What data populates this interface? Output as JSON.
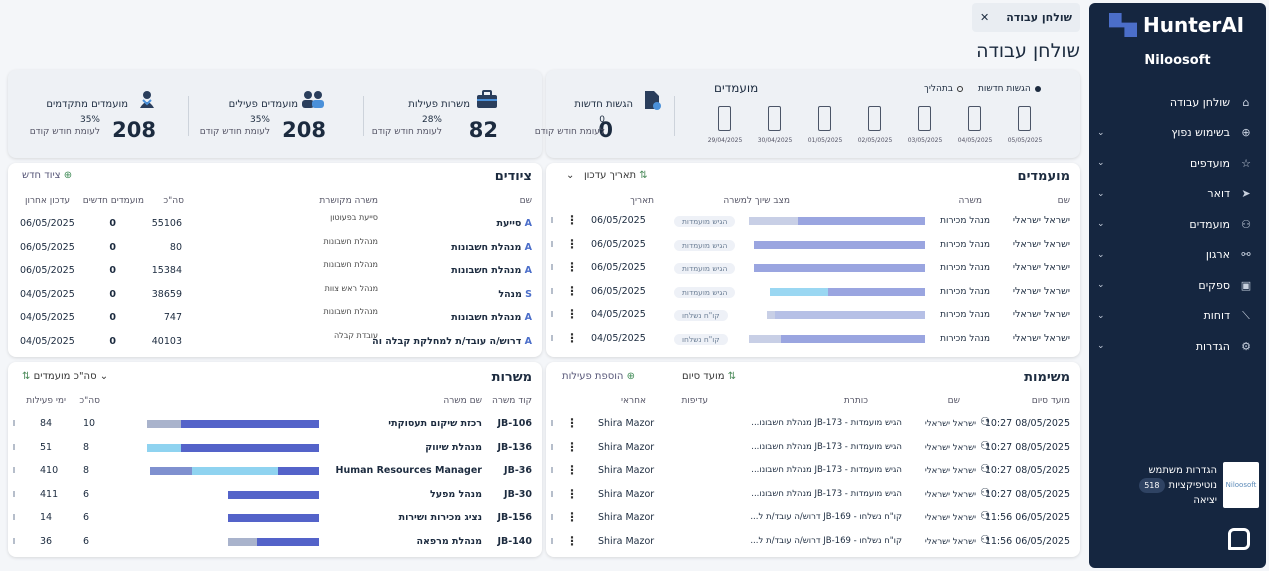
{
  "app": {
    "logo": "HunterAI",
    "org": "Niloosoft"
  },
  "tab": {
    "label": "שולחן עבודה",
    "close": "✕"
  },
  "page": {
    "title": "שולחן עבודה"
  },
  "sidebar": {
    "items": [
      {
        "label": "שולחן עבודה",
        "icon": "home-icon",
        "glyph": "⌂",
        "chev": ""
      },
      {
        "label": "בשימוש נפוץ",
        "icon": "crosshair-icon",
        "glyph": "⊕",
        "chev": "⌄"
      },
      {
        "label": "מועדפים",
        "icon": "star-icon",
        "glyph": "☆",
        "chev": "⌄"
      },
      {
        "label": "דואר",
        "icon": "send-icon",
        "glyph": "➤",
        "chev": "⌄"
      },
      {
        "label": "מועמדים",
        "icon": "user-icon",
        "glyph": "⚇",
        "chev": "⌄"
      },
      {
        "label": "ארגון",
        "icon": "org-icon",
        "glyph": "⚯",
        "chev": "⌄"
      },
      {
        "label": "ספקים",
        "icon": "save-icon",
        "glyph": "▣",
        "chev": "⌄"
      },
      {
        "label": "דוחות",
        "icon": "chart-icon",
        "glyph": "⟋",
        "chev": "⌄"
      },
      {
        "label": "הגדרות",
        "icon": "gear-icon",
        "glyph": "⚙",
        "chev": "⌄"
      }
    ],
    "user": {
      "settings": "הגדרות משתמש",
      "notifications": "נוטיפיקציות",
      "badge": "518",
      "logout": "יציאה",
      "avatar_text": "Niloosoft"
    }
  },
  "kpis": [
    {
      "title": "משרות פעילות",
      "value": "82",
      "pct": "28%",
      "sub": "לעומת חודש קודם",
      "icon": "briefcase-icon"
    },
    {
      "title": "מועמדים פעילים",
      "value": "208",
      "pct": "35%",
      "sub": "לעומת חודש קודם",
      "icon": "users-icon"
    },
    {
      "title": "מועמדים מתקדמים",
      "value": "208",
      "pct": "35%",
      "sub": "לעומת חודש קודם",
      "icon": "advanced-user-icon"
    }
  ],
  "submissions": {
    "title": "הגשות חדשות",
    "value": "0",
    "pct": "0",
    "sub": "לעומת חודש קודם",
    "section": "מועמדים",
    "legend_new": "הגשות חדשות",
    "legend_progress": "בתהליך",
    "dates": [
      "05/05/2025",
      "04/05/2025",
      "03/05/2025",
      "02/05/2025",
      "01/05/2025",
      "30/04/2025",
      "29/04/2025"
    ]
  },
  "candidates": {
    "title": "מועמדים",
    "sort": "תאריך עדכון",
    "headers": {
      "name": "שם",
      "job": "משרה",
      "status": "מצב שיוך למשרה",
      "date": "תאריך"
    },
    "rows": [
      {
        "name": "ישראל ישראלי",
        "job": "מנהל מכירות",
        "status": "הגיש מועמדות",
        "date": "06/05/2025",
        "light": 0.28,
        "dark": 0.72
      },
      {
        "name": "ישראל ישראלי",
        "job": "מנהל מכירות",
        "status": "הגיש מועמדות",
        "date": "06/05/2025",
        "light": 0,
        "dark": 0.97
      },
      {
        "name": "ישראל ישראלי",
        "job": "מנהל מכירות",
        "status": "הגיש מועמדות",
        "date": "06/05/2025",
        "light": 0,
        "dark": 0.97
      },
      {
        "name": "ישראל ישראלי",
        "job": "מנהל מכירות",
        "status": "הגיש מועמדות",
        "date": "06/05/2025",
        "light": 0.33,
        "dark": 0.55
      },
      {
        "name": "ישראל ישראלי",
        "job": "מנהל מכירות",
        "status": "קו\"ח נשלחו",
        "date": "04/05/2025",
        "light": 0.05,
        "dark": 0.85
      },
      {
        "name": "ישראל ישראלי",
        "job": "מנהל מכירות",
        "status": "קו\"ח נשלחו",
        "date": "04/05/2025",
        "light": 0.18,
        "dark": 0.82
      }
    ]
  },
  "equipment": {
    "title": "ציודים",
    "add": "ציוד חדש",
    "headers": {
      "name": "שם",
      "source_job": "משרה מקושרת",
      "total": "סה\"כ",
      "new_candidates": "מועמדים חדשים",
      "last_update": "עדכון אחרון"
    },
    "rows": [
      {
        "letter": "A",
        "name": "סייעת",
        "source": "סייעת בפעוטון",
        "total": "55106",
        "new": "0",
        "date": "06/05/2025"
      },
      {
        "letter": "A",
        "name": "מנהלת חשבונות",
        "source": "מנהלת חשבונות",
        "total": "80",
        "new": "0",
        "date": "06/05/2025"
      },
      {
        "letter": "A",
        "name": "מנהלת חשבונות",
        "source": "מנהלת חשבונות",
        "total": "15384",
        "new": "0",
        "date": "06/05/2025"
      },
      {
        "letter": "S",
        "name": "מנהל",
        "source": "מנהל ראש צוות",
        "total": "38659",
        "new": "0",
        "date": "04/05/2025"
      },
      {
        "letter": "A",
        "name": "מנהלת חשבונות",
        "source": "מנהלת חשבונות",
        "total": "747",
        "new": "0",
        "date": "04/05/2025"
      },
      {
        "letter": "A",
        "name": "דרוש/ה עובד/ת למחלקת קבלה וה",
        "source": "עובדת קבלה",
        "total": "40103",
        "new": "0",
        "date": "04/05/2025"
      }
    ]
  },
  "tasks": {
    "title": "משימות",
    "sort": "מועד סיום",
    "add": "הוספת פעילות",
    "headers": {
      "due": "מועד סיום",
      "name": "שם",
      "subject": "כותרת",
      "priority": "עדיפות",
      "owner": "אחראי"
    },
    "rows": [
      {
        "due": "10:27 08/05/2025",
        "name": "ישראל ישראלי",
        "subject": "הגיש מועמדות - JB-173 מנהלת חשבונו...",
        "owner": "Shira Mazor"
      },
      {
        "due": "10:27 08/05/2025",
        "name": "ישראל ישראלי",
        "subject": "הגיש מועמדות - JB-173 מנהלת חשבונו...",
        "owner": "Shira Mazor"
      },
      {
        "due": "10:27 08/05/2025",
        "name": "ישראל ישראלי",
        "subject": "הגיש מועמדות - JB-173 מנהלת חשבונו...",
        "owner": "Shira Mazor"
      },
      {
        "due": "10:27 08/05/2025",
        "name": "ישראל ישראלי",
        "subject": "הגיש מועמדות - JB-173 מנהלת חשבונו...",
        "owner": "Shira Mazor"
      },
      {
        "due": "11:56 06/05/2025",
        "name": "ישראל ישראלי",
        "subject": "קו\"ח נשלחו - JB-169 דרוש/ה עובד/ת ל...",
        "owner": "Shira Mazor"
      },
      {
        "due": "11:56 06/05/2025",
        "name": "ישראל ישראלי",
        "subject": "קו\"ח נשלחו - JB-169 דרוש/ה עובד/ת ל...",
        "owner": "Shira Mazor"
      }
    ]
  },
  "jobs": {
    "title": "משרות",
    "sort": "סה\"כ מועמדים",
    "headers": {
      "code": "קוד משרה",
      "name": "שם משרה",
      "total": "סה\"כ",
      "active_days": "ימי פעילות"
    },
    "rows": [
      {
        "code": "JB-106",
        "name": "רכזת שיקום תעסוקתי",
        "total": "10",
        "days": "84",
        "segs": [
          [
            "#a9b3cc",
            0.2
          ],
          [
            "#5463c9",
            0.8
          ]
        ]
      },
      {
        "code": "JB-136",
        "name": "מנהלת שיווק",
        "total": "8",
        "days": "51",
        "segs": [
          [
            "#8fd3f0",
            0.2
          ],
          [
            "#5463c9",
            0.8
          ]
        ]
      },
      {
        "code": "JB-36",
        "name": "Human Resources Manager",
        "total": "8",
        "days": "410",
        "segs": [
          [
            "#7f90cf",
            0.24
          ],
          [
            "#8fd3f0",
            0.5
          ],
          [
            "#5463c9",
            0.24
          ]
        ]
      },
      {
        "code": "JB-30",
        "name": "מנהל מפעל",
        "total": "6",
        "days": "411",
        "segs": [
          [
            "#5463c9",
            0.53
          ]
        ]
      },
      {
        "code": "JB-156",
        "name": "נציג מכירות ושירות",
        "total": "6",
        "days": "14",
        "segs": [
          [
            "#5463c9",
            0.53
          ]
        ]
      },
      {
        "code": "JB-140",
        "name": "מנהלת מרפאה",
        "total": "6",
        "days": "36",
        "segs": [
          [
            "#a9b3cc",
            0.17
          ],
          [
            "#5463c9",
            0.36
          ]
        ]
      }
    ]
  }
}
